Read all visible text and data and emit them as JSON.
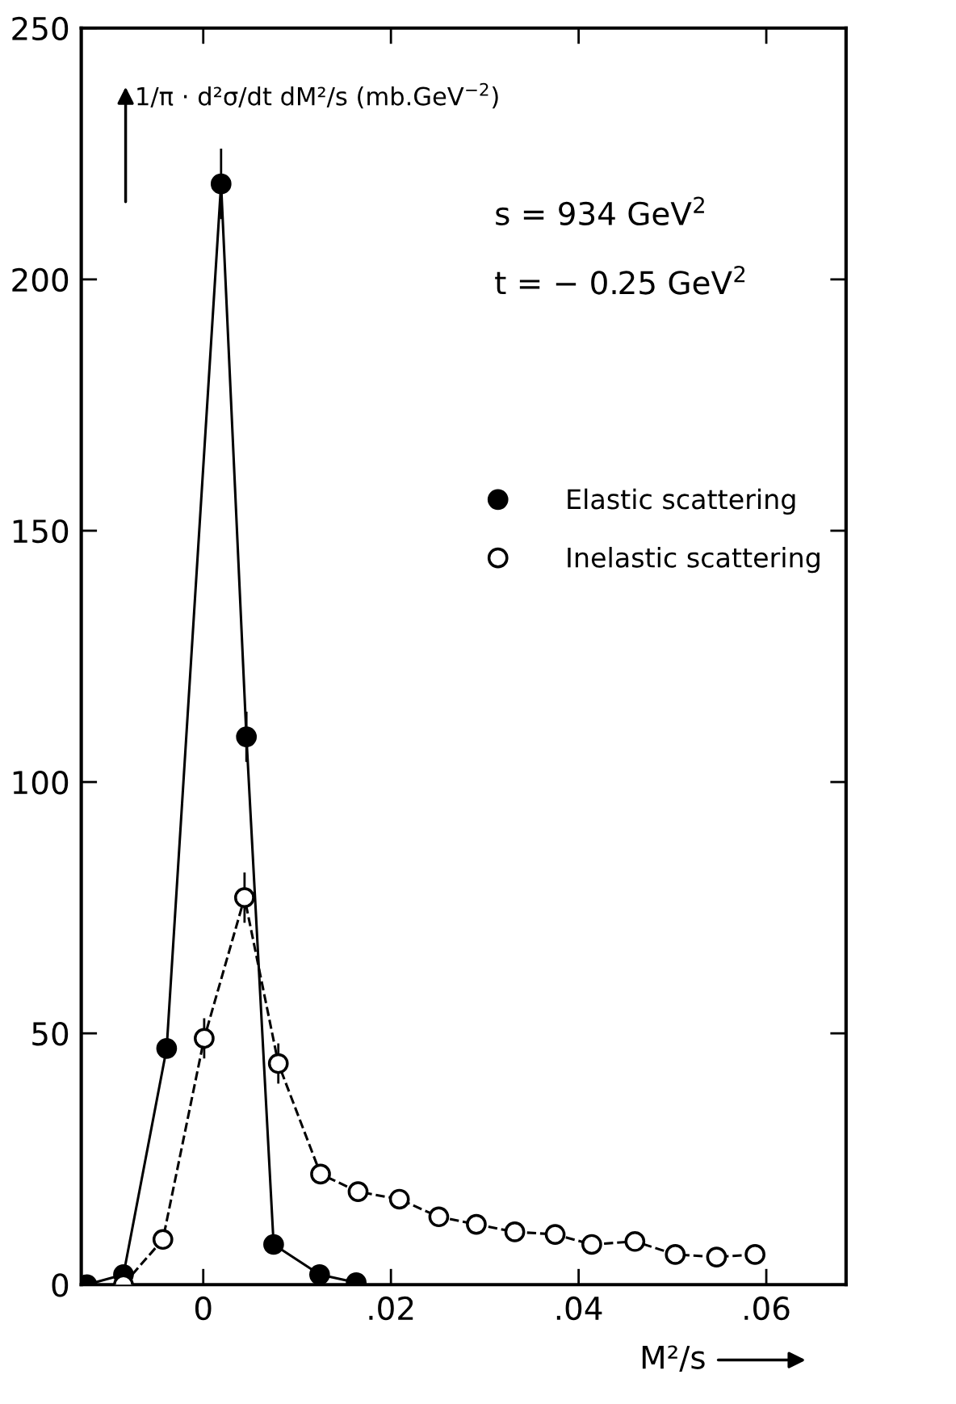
{
  "chart_data": {
    "type": "line",
    "xlabel": "M²/s",
    "ylabel": "1/π · d²σ/dt dM²/s (mb.GeV$^{−2}$)",
    "series": [
      {
        "name": "Elastic scattering",
        "color": "#000000",
        "line_style": "solid",
        "marker": "circle",
        "x": [
          -0.0124,
          -0.0085,
          -0.0039,
          0.0019,
          0.0046,
          0.0075,
          0.0124,
          0.0163
        ],
        "values": [
          0,
          2,
          47,
          219,
          109,
          8,
          2,
          0.4
        ],
        "errors": [
          null,
          null,
          null,
          7,
          5,
          null,
          null,
          null
        ]
      },
      {
        "name": "Inelastic scattering",
        "color": "#000000",
        "line_style": "dashed",
        "marker": "circle",
        "x": [
          -0.0085,
          -0.0043,
          0.0001,
          0.0044,
          0.008,
          0.0125,
          0.0165,
          0.0209,
          0.0251,
          0.0291,
          0.0332,
          0.0375,
          0.0414,
          0.046,
          0.0503,
          0.0547,
          0.0588
        ],
        "values": [
          0,
          9,
          49,
          77,
          44,
          22,
          18.5,
          17,
          13.5,
          12,
          10.5,
          10,
          8,
          8.6,
          6,
          5.5,
          6
        ],
        "errors": [
          null,
          null,
          4,
          5,
          4,
          null,
          null,
          null,
          null,
          null,
          null,
          null,
          null,
          null,
          null,
          null,
          null
        ]
      }
    ],
    "xlim": [
      -0.013,
      0.0685
    ],
    "xticks": [
      {
        "value": 0,
        "label": "0"
      },
      {
        "value": 0.02,
        "label": ".02"
      },
      {
        "value": 0.04,
        "label": ".04"
      },
      {
        "value": 0.06,
        "label": ".06"
      }
    ],
    "ylim": [
      0,
      250
    ],
    "yticks": [
      0,
      50,
      100,
      150,
      200,
      250
    ],
    "annotations": [
      "s = 934 GeV$^{2}$",
      "t = − 0.25 GeV$^{2}$"
    ],
    "legend": "right",
    "grid": false
  }
}
